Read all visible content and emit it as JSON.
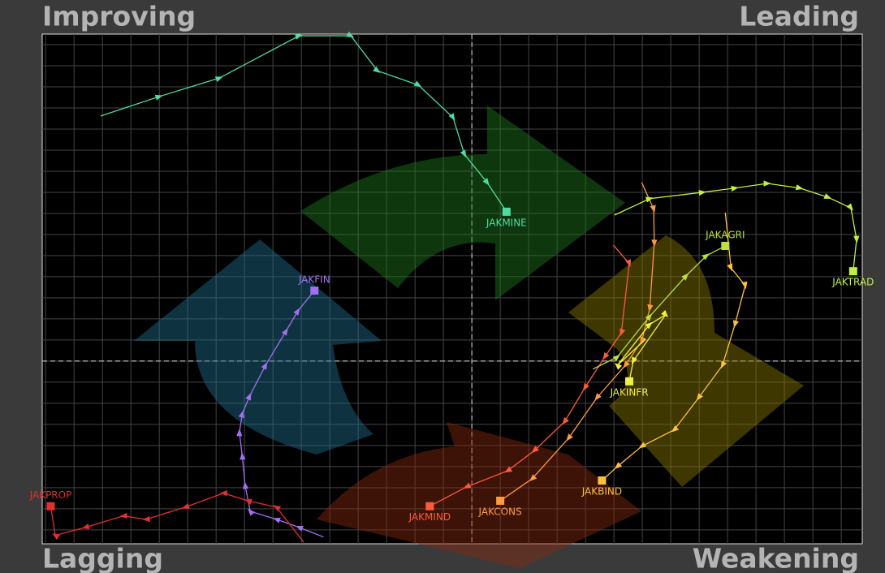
{
  "chart_data": {
    "type": "line",
    "quadrants": {
      "top_left": "Improving",
      "top_right": "Leading",
      "bottom_left": "Lagging",
      "bottom_right": "Weakening"
    },
    "xlim": [
      92.44,
      106.87
    ],
    "ylim": [
      95.67,
      107.75
    ],
    "xticks": [
      92.5,
      93,
      93.5,
      94,
      94.5,
      95,
      95.5,
      96,
      96.5,
      97,
      97.5,
      98,
      98.5,
      99,
      99.5,
      100,
      100.5,
      101,
      101.5,
      102,
      102.5,
      103,
      103.5,
      104,
      104.5,
      105,
      105.5,
      106,
      106.5
    ],
    "yticks": [
      96,
      96.5,
      97,
      97.5,
      98,
      98.5,
      99,
      99.5,
      100,
      100.5,
      101,
      101.5,
      102,
      102.5,
      103,
      103.5,
      104,
      104.5,
      105,
      105.5,
      106,
      106.5,
      107,
      107.5
    ],
    "grid": true,
    "crosshair": {
      "x": 100,
      "y": 100
    },
    "series": [
      {
        "name": "JAKMINE",
        "color": "#4fdca0",
        "x": [
          93.47,
          94.5,
          95.56,
          96.96,
          97.87,
          98.34,
          99.06,
          99.67,
          99.87,
          100.27,
          100.61
        ],
        "values": [
          105.81,
          106.27,
          106.71,
          107.71,
          107.71,
          106.88,
          106.54,
          105.77,
          104.9,
          104.23,
          103.54
        ]
      },
      {
        "name": "JAKFIN",
        "color": "#a070f0",
        "x": [
          97.39,
          96.96,
          96.56,
          96.1,
          96.01,
          95.96,
          95.91,
          95.96,
          96.09,
          96.37,
          96.73,
          96.94,
          97.23
        ],
        "values": [
          95.83,
          96.06,
          96.25,
          96.44,
          97.06,
          97.75,
          98.31,
          98.75,
          99.17,
          99.9,
          100.71,
          101.19,
          101.67
        ]
      },
      {
        "name": "JAKPROP",
        "color": "#e03030",
        "x": [
          97.04,
          96.56,
          96.06,
          95.63,
          94.96,
          94.27,
          93.87,
          93.2,
          92.67,
          92.59
        ],
        "values": [
          95.71,
          96.54,
          96.69,
          96.87,
          96.54,
          96.25,
          96.33,
          96.06,
          95.87,
          96.56
        ]
      },
      {
        "name": "JAKMIND",
        "color": "#ff5a3c",
        "x": [
          102.49,
          102.77,
          102.63,
          102.34,
          101.99,
          101.63,
          101.1,
          100.63,
          99.91,
          99.26
        ],
        "values": [
          102.75,
          102.31,
          100.67,
          100.1,
          99.37,
          98.56,
          97.88,
          97.4,
          97.02,
          96.56
        ]
      },
      {
        "name": "JAKCONS",
        "color": "#ff9a40",
        "x": [
          102.99,
          103.2,
          103.21,
          103.13,
          102.99,
          102.7,
          102.2,
          101.7,
          101.06,
          100.5
        ],
        "values": [
          104.23,
          103.6,
          102.79,
          101.25,
          100.48,
          99.9,
          99.13,
          98.17,
          97.21,
          96.69
        ]
      },
      {
        "name": "JAKBIND",
        "color": "#ffc040",
        "x": [
          104.46,
          104.56,
          104.81,
          104.63,
          104.41,
          103.99,
          103.56,
          102.99,
          102.56,
          102.29
        ],
        "values": [
          103.52,
          102.21,
          101.79,
          100.87,
          99.9,
          99.13,
          98.37,
          97.98,
          97.5,
          97.17
        ]
      },
      {
        "name": "JAKAGRI",
        "color": "#b8e040",
        "x": [
          102.13,
          102.56,
          103.13,
          103.77,
          104.13,
          104.46
        ],
        "values": [
          99.81,
          100.1,
          101.06,
          102.02,
          102.5,
          102.73
        ]
      },
      {
        "name": "JAKINFR",
        "color": "#f0f040",
        "x": [
          103.06,
          102.56,
          103.13,
          103.41,
          102.84,
          102.77
        ],
        "values": [
          100.52,
          99.9,
          100.87,
          101.1,
          100.0,
          99.52
        ]
      },
      {
        "name": "JAKTRAD",
        "color": "#c0f040",
        "x": [
          102.51,
          103.13,
          104.06,
          104.63,
          105.2,
          105.77,
          106.27,
          106.67,
          106.77,
          106.71
        ],
        "values": [
          103.46,
          103.85,
          104.0,
          104.1,
          104.21,
          104.1,
          103.88,
          103.63,
          102.88,
          102.13
        ]
      }
    ]
  }
}
